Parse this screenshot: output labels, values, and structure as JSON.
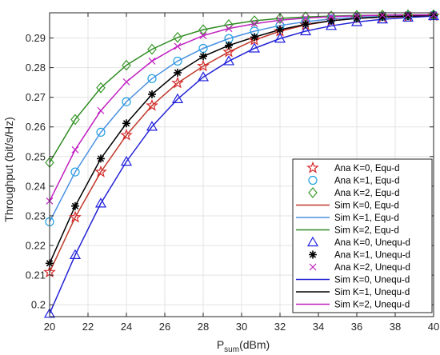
{
  "chart_data": {
    "type": "line",
    "title": "",
    "xlabel_main": "P",
    "xlabel_sub": "sum",
    "xlabel_unit": "(dBm)",
    "ylabel": "Throughput (bit/s/Hz)",
    "xlim": [
      20,
      40
    ],
    "ylim": [
      0.196,
      0.2985
    ],
    "xticks": [
      20,
      22,
      24,
      26,
      28,
      30,
      32,
      34,
      36,
      38,
      40
    ],
    "yticks": [
      0.2,
      0.21,
      0.22,
      0.23,
      0.24,
      0.25,
      0.26,
      0.27,
      0.28,
      0.29
    ],
    "ytick_labels": [
      "0.2",
      "0.21",
      "0.22",
      "0.23",
      "0.24",
      "0.25",
      "0.26",
      "0.27",
      "0.28",
      "0.29"
    ],
    "grid": true,
    "legend_position": "bottom-right",
    "x": [
      20,
      21.333,
      22.667,
      24,
      25.333,
      26.667,
      28,
      29.333,
      30.667,
      32,
      33.333,
      34.667,
      36,
      37.333,
      38.667,
      40
    ],
    "series": [
      {
        "name": "Ana K=0, Equ-d",
        "kind": "marker",
        "marker": "star",
        "color": "#d62728",
        "values": [
          0.211,
          0.2295,
          0.2448,
          0.2572,
          0.2672,
          0.2748,
          0.2805,
          0.2853,
          0.2893,
          0.2923,
          0.2944,
          0.2958,
          0.2966,
          0.297,
          0.2972,
          0.2975
        ]
      },
      {
        "name": "Ana K=1, Equ-d",
        "kind": "marker",
        "marker": "circle",
        "color": "#1f9fe0",
        "values": [
          0.228,
          0.2448,
          0.2582,
          0.2685,
          0.2763,
          0.2822,
          0.2865,
          0.2898,
          0.2923,
          0.2942,
          0.2955,
          0.2964,
          0.297,
          0.2973,
          0.2975,
          0.2977
        ]
      },
      {
        "name": "Ana K=2, Equ-d",
        "kind": "marker",
        "marker": "diamond",
        "color": "#3a9a2a",
        "values": [
          0.248,
          0.2625,
          0.2732,
          0.2808,
          0.2862,
          0.2902,
          0.2928,
          0.2945,
          0.2958,
          0.2966,
          0.2971,
          0.2974,
          0.2976,
          0.2977,
          0.2978,
          0.2978
        ]
      },
      {
        "name": "Sim K=0, Equ-d",
        "kind": "line",
        "color": "#c0392b",
        "values": [
          0.211,
          0.2295,
          0.2448,
          0.2572,
          0.2672,
          0.2748,
          0.2805,
          0.2853,
          0.2893,
          0.2923,
          0.2944,
          0.2958,
          0.2966,
          0.297,
          0.2972,
          0.2975
        ]
      },
      {
        "name": "Sim K=1, Equ-d",
        "kind": "line",
        "color": "#4a90e2",
        "values": [
          0.228,
          0.2448,
          0.2582,
          0.2685,
          0.2763,
          0.2822,
          0.2865,
          0.2898,
          0.2923,
          0.2942,
          0.2955,
          0.2964,
          0.297,
          0.2973,
          0.2975,
          0.2977
        ]
      },
      {
        "name": "Sim K=2, Equ-d",
        "kind": "line",
        "color": "#2e8b22",
        "values": [
          0.248,
          0.2625,
          0.2732,
          0.2808,
          0.2862,
          0.2902,
          0.2928,
          0.2945,
          0.2958,
          0.2966,
          0.2971,
          0.2974,
          0.2976,
          0.2977,
          0.2978,
          0.2978
        ]
      },
      {
        "name": "Ana K=0, Unequ-d",
        "kind": "marker",
        "marker": "triangle",
        "color": "#1f1fe0",
        "values": [
          0.197,
          0.2168,
          0.2342,
          0.2483,
          0.2601,
          0.2694,
          0.2768,
          0.2822,
          0.2865,
          0.2898,
          0.2923,
          0.2941,
          0.2954,
          0.2963,
          0.2969,
          0.2974
        ]
      },
      {
        "name": "Ana K=1, Unequ-d",
        "kind": "marker",
        "marker": "asterisk",
        "color": "#000000",
        "values": [
          0.214,
          0.2333,
          0.2493,
          0.2612,
          0.271,
          0.2783,
          0.2838,
          0.2875,
          0.2903,
          0.2928,
          0.2946,
          0.2958,
          0.2966,
          0.2971,
          0.2974,
          0.2976
        ]
      },
      {
        "name": "Ana K=2, Unequ-d",
        "kind": "marker",
        "marker": "cross",
        "color": "#c020c0",
        "values": [
          0.235,
          0.2523,
          0.2655,
          0.2752,
          0.2822,
          0.2872,
          0.2908,
          0.2932,
          0.2948,
          0.296,
          0.2967,
          0.2972,
          0.2975,
          0.2977,
          0.2978,
          0.2978
        ]
      },
      {
        "name": "Sim K=0, Unequ-d",
        "kind": "line",
        "color": "#2323d6",
        "values": [
          0.197,
          0.2168,
          0.2342,
          0.2483,
          0.2601,
          0.2694,
          0.2768,
          0.2822,
          0.2865,
          0.2898,
          0.2923,
          0.2941,
          0.2954,
          0.2963,
          0.2969,
          0.2974
        ]
      },
      {
        "name": "Sim K=1, Unequ-d",
        "kind": "line",
        "color": "#000000",
        "values": [
          0.214,
          0.2333,
          0.2493,
          0.2612,
          0.271,
          0.2783,
          0.2838,
          0.2875,
          0.2903,
          0.2928,
          0.2946,
          0.2958,
          0.2966,
          0.2971,
          0.2974,
          0.2976
        ]
      },
      {
        "name": "Sim K=2, Unequ-d",
        "kind": "line",
        "color": "#c020c0",
        "values": [
          0.235,
          0.2523,
          0.2655,
          0.2752,
          0.2822,
          0.2872,
          0.2908,
          0.2932,
          0.2948,
          0.296,
          0.2967,
          0.2972,
          0.2975,
          0.2977,
          0.2978,
          0.2978
        ]
      }
    ]
  }
}
